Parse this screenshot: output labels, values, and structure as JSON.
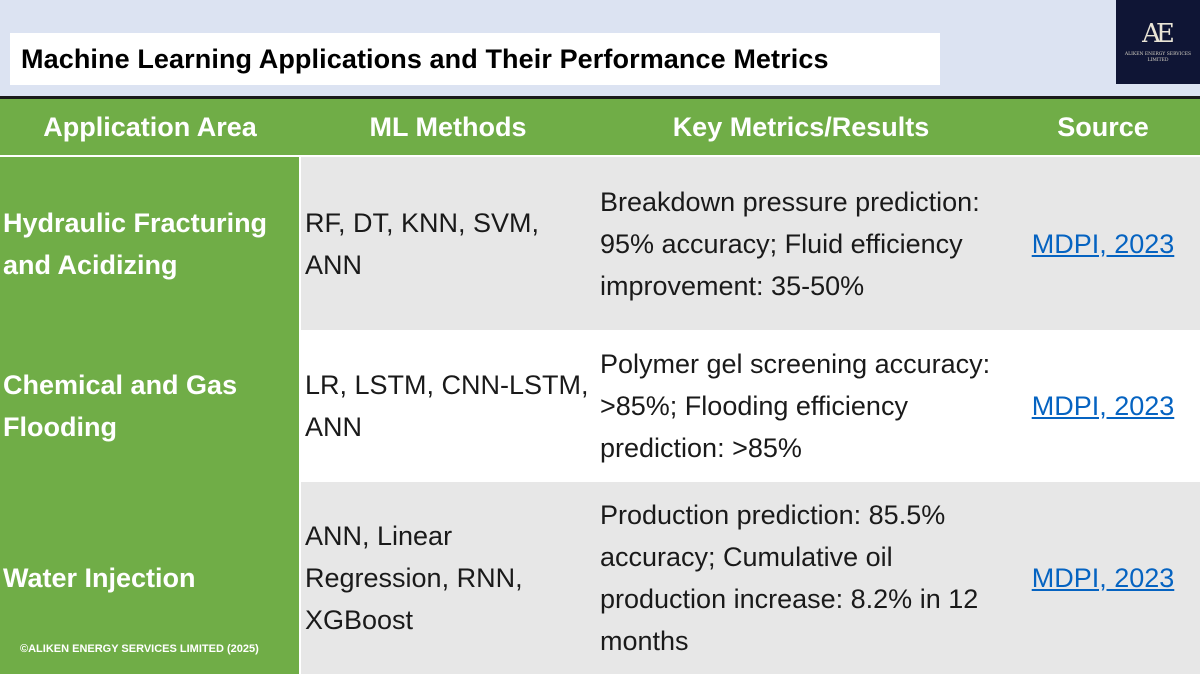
{
  "title": "Machine Learning Applications and Their Performance Metrics",
  "logo": {
    "mark": "AE",
    "text": "ALIKEN ENERGY SERVICES LIMITED"
  },
  "table": {
    "headers": [
      "Application Area",
      "ML Methods",
      "Key Metrics/Results",
      "Source"
    ],
    "rows": [
      {
        "area": "Hydraulic Fracturing and Acidizing",
        "methods": "RF, DT, KNN, SVM, ANN",
        "metrics": "Breakdown pressure prediction: 95% accuracy; Fluid efficiency improvement: 35-50%",
        "source": "MDPI, 2023"
      },
      {
        "area": "Chemical and Gas Flooding",
        "methods": "LR, LSTM, CNN-LSTM, ANN",
        "metrics": "Polymer gel screening accuracy: >85%; Flooding efficiency prediction: >85%",
        "source": "MDPI, 2023"
      },
      {
        "area": "Water Injection",
        "methods": "ANN, Linear Regression, RNN, XGBoost",
        "metrics": "Production prediction: 85.5% accuracy; Cumulative oil production increase: 8.2% in 12 months",
        "source": "MDPI, 2023"
      }
    ]
  },
  "copyright": "©ALIKEN ENERGY SERVICES LIMITED (2025)",
  "colors": {
    "header_green": "#70ad47",
    "band_blue": "#dce3f2",
    "link_blue": "#0563c1",
    "logo_navy": "#0f1535"
  }
}
